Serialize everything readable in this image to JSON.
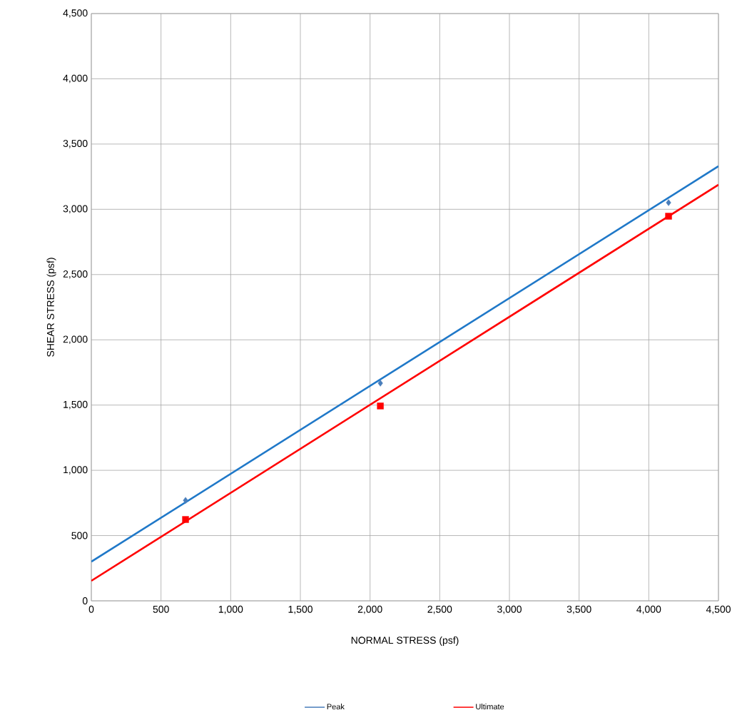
{
  "chart_data": {
    "type": "scatter",
    "xlabel": "NORMAL STRESS (psf)",
    "ylabel": "SHEAR STRESS (psf)",
    "xlim": [
      0,
      4500
    ],
    "ylim": [
      0,
      4500
    ],
    "xticks": [
      {
        "value": 0,
        "label": "0"
      },
      {
        "value": 500,
        "label": "500"
      },
      {
        "value": 1000,
        "label": "1,000"
      },
      {
        "value": 1500,
        "label": "1,500"
      },
      {
        "value": 2000,
        "label": "2,000"
      },
      {
        "value": 2500,
        "label": "2,500"
      },
      {
        "value": 3000,
        "label": "3,000"
      },
      {
        "value": 3500,
        "label": "3,500"
      },
      {
        "value": 4000,
        "label": "4,000"
      },
      {
        "value": 4500,
        "label": "4,500"
      }
    ],
    "yticks": [
      {
        "value": 0,
        "label": "0"
      },
      {
        "value": 500,
        "label": "500"
      },
      {
        "value": 1000,
        "label": "1,000"
      },
      {
        "value": 1500,
        "label": "1,500"
      },
      {
        "value": 2000,
        "label": "2,000"
      },
      {
        "value": 2500,
        "label": "2,500"
      },
      {
        "value": 3000,
        "label": "3,000"
      },
      {
        "value": 3500,
        "label": "3,500"
      },
      {
        "value": 4000,
        "label": "4,000"
      },
      {
        "value": 4500,
        "label": "4,500"
      }
    ],
    "grid": true,
    "legend": "bottom",
    "series": [
      {
        "name": "Peak",
        "marker": "diamond",
        "color": "#4a7ebb",
        "x": [
          676,
          2074,
          4142
        ],
        "values": [
          770,
          1668,
          3051
        ]
      },
      {
        "type": "line",
        "marker": "none",
        "color": "#1f78c8",
        "x": [
          0,
          4500
        ],
        "values": [
          300,
          3330
        ]
      },
      {
        "name": "Ultimate",
        "marker": "square",
        "color": "#ff0000",
        "x": [
          676,
          2074,
          4142
        ],
        "values": [
          623,
          1493,
          2947
        ]
      },
      {
        "type": "line",
        "marker": "none",
        "color": "#ff0000",
        "x": [
          0,
          4500
        ],
        "values": [
          153,
          3188
        ]
      }
    ]
  }
}
